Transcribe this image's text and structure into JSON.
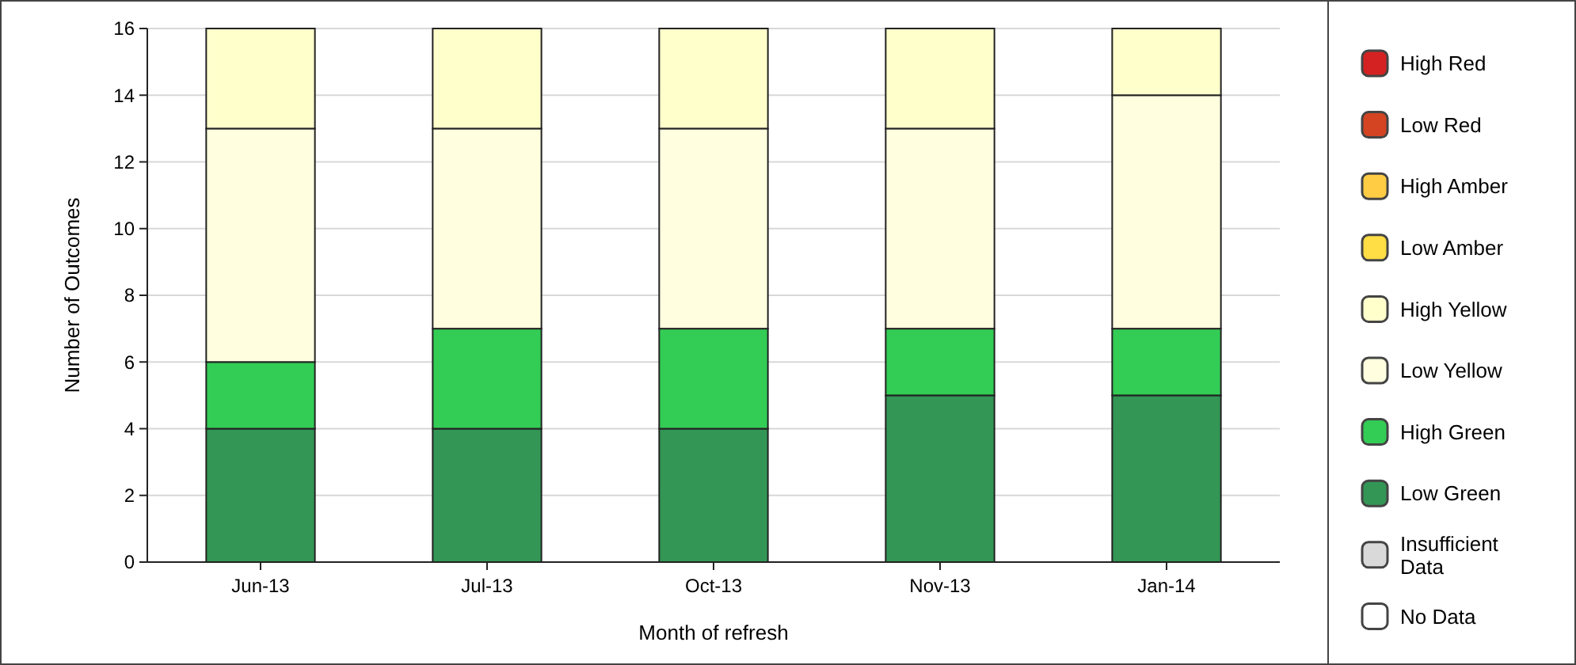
{
  "chart_data": {
    "type": "bar",
    "stacked": true,
    "xlabel": "Month of refresh",
    "ylabel": "Number of Outcomes",
    "categories": [
      "Jun-13",
      "Jul-13",
      "Oct-13",
      "Nov-13",
      "Jan-14"
    ],
    "series": [
      {
        "name": "No Data",
        "color": "#ffffff",
        "values": [
          0,
          0,
          0,
          0,
          0
        ]
      },
      {
        "name": "Insufficient Data",
        "color": "#d9d9d9",
        "values": [
          0,
          0,
          0,
          0,
          0
        ]
      },
      {
        "name": "Low Green",
        "color": "#339655",
        "values": [
          4,
          4,
          4,
          5,
          5
        ]
      },
      {
        "name": "High Green",
        "color": "#33cc55",
        "values": [
          2,
          3,
          3,
          2,
          2
        ]
      },
      {
        "name": "Low Yellow",
        "color": "#ffffe0",
        "values": [
          7,
          6,
          6,
          6,
          7
        ]
      },
      {
        "name": "High Yellow",
        "color": "#ffffcc",
        "values": [
          3,
          3,
          3,
          3,
          2
        ]
      },
      {
        "name": "Low Amber",
        "color": "#ffdd44",
        "values": [
          0,
          0,
          0,
          0,
          0
        ]
      },
      {
        "name": "High Amber",
        "color": "#ffcc44",
        "values": [
          0,
          0,
          0,
          0,
          0
        ]
      },
      {
        "name": "Low Red",
        "color": "#d44422",
        "values": [
          0,
          0,
          0,
          0,
          0
        ]
      },
      {
        "name": "High Red",
        "color": "#d42222",
        "values": [
          0,
          0,
          0,
          0,
          0
        ]
      }
    ],
    "ylim": [
      0,
      16
    ],
    "yticks": [
      0,
      2,
      4,
      6,
      8,
      10,
      12,
      14,
      16
    ],
    "grid": "y",
    "legend": "right"
  }
}
